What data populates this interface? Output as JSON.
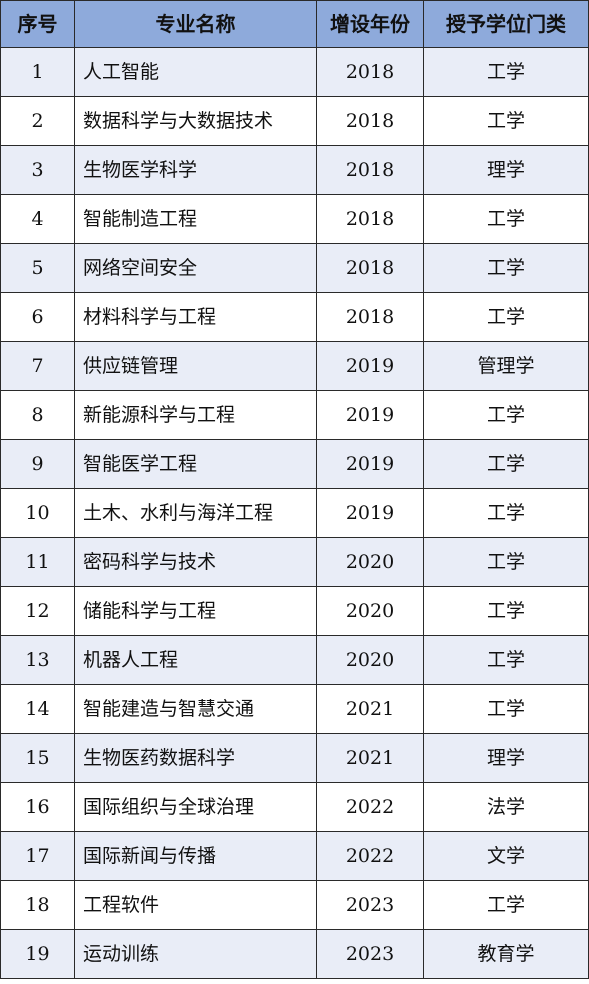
{
  "table": {
    "header_bg": "#8eaadb",
    "stripe_bg": "#e9edf7",
    "headers": [
      "序号",
      "专业名称",
      "增设年份",
      "授予学位门类"
    ],
    "rows": [
      {
        "no": "1",
        "name": "人工智能",
        "year": "2018",
        "degree": "工学"
      },
      {
        "no": "2",
        "name": "数据科学与大数据技术",
        "year": "2018",
        "degree": "工学"
      },
      {
        "no": "3",
        "name": "生物医学科学",
        "year": "2018",
        "degree": "理学"
      },
      {
        "no": "4",
        "name": "智能制造工程",
        "year": "2018",
        "degree": "工学"
      },
      {
        "no": "5",
        "name": "网络空间安全",
        "year": "2018",
        "degree": "工学"
      },
      {
        "no": "6",
        "name": "材料科学与工程",
        "year": "2018",
        "degree": "工学"
      },
      {
        "no": "7",
        "name": "供应链管理",
        "year": "2019",
        "degree": "管理学"
      },
      {
        "no": "8",
        "name": "新能源科学与工程",
        "year": "2019",
        "degree": "工学"
      },
      {
        "no": "9",
        "name": "智能医学工程",
        "year": "2019",
        "degree": "工学"
      },
      {
        "no": "10",
        "name": "土木、水利与海洋工程",
        "year": "2019",
        "degree": "工学"
      },
      {
        "no": "11",
        "name": "密码科学与技术",
        "year": "2020",
        "degree": "工学"
      },
      {
        "no": "12",
        "name": "储能科学与工程",
        "year": "2020",
        "degree": "工学"
      },
      {
        "no": "13",
        "name": "机器人工程",
        "year": "2020",
        "degree": "工学"
      },
      {
        "no": "14",
        "name": "智能建造与智慧交通",
        "year": "2021",
        "degree": "工学"
      },
      {
        "no": "15",
        "name": "生物医药数据科学",
        "year": "2021",
        "degree": "理学"
      },
      {
        "no": "16",
        "name": "国际组织与全球治理",
        "year": "2022",
        "degree": "法学"
      },
      {
        "no": "17",
        "name": "国际新闻与传播",
        "year": "2022",
        "degree": "文学"
      },
      {
        "no": "18",
        "name": "工程软件",
        "year": "2023",
        "degree": "工学"
      },
      {
        "no": "19",
        "name": "运动训练",
        "year": "2023",
        "degree": "教育学"
      }
    ]
  }
}
